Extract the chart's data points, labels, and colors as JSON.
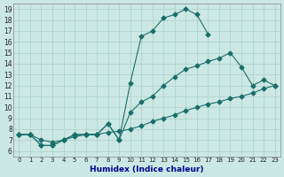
{
  "xlabel": "Humidex (Indice chaleur)",
  "bg_color": "#cce8e4",
  "grid_color": "#aacfcc",
  "line_color": "#1a6e6a",
  "xlim": [
    -0.5,
    23.5
  ],
  "ylim": [
    5.5,
    19.5
  ],
  "xticks": [
    0,
    1,
    2,
    3,
    4,
    5,
    6,
    7,
    8,
    9,
    10,
    11,
    12,
    13,
    14,
    15,
    16,
    17,
    18,
    19,
    20,
    21,
    22,
    23
  ],
  "yticks": [
    6,
    7,
    8,
    9,
    10,
    11,
    12,
    13,
    14,
    15,
    16,
    17,
    18,
    19
  ],
  "line1_x": [
    0,
    1,
    2,
    3,
    4,
    5,
    6,
    7,
    8,
    9,
    10,
    11,
    12,
    13,
    14,
    15,
    16,
    17
  ],
  "line1_y": [
    7.5,
    7.5,
    6.5,
    6.5,
    7.0,
    7.5,
    7.5,
    7.5,
    8.5,
    7.0,
    12.2,
    16.5,
    17.0,
    18.2,
    18.5,
    19.0,
    18.5,
    16.7
  ],
  "line2_x": [
    0,
    1,
    2,
    3,
    4,
    5,
    6,
    7,
    8,
    9,
    10,
    11,
    12,
    13,
    14,
    15,
    16,
    17,
    18,
    19,
    20,
    21,
    22,
    23
  ],
  "line2_y": [
    7.5,
    7.5,
    6.5,
    6.5,
    7.0,
    7.5,
    7.5,
    7.5,
    8.5,
    7.0,
    9.5,
    10.5,
    11.0,
    12.0,
    12.8,
    13.5,
    13.8,
    14.2,
    14.5,
    15.0,
    13.7,
    12.0,
    12.5,
    12.0
  ],
  "line3_x": [
    0,
    1,
    2,
    3,
    4,
    5,
    6,
    7,
    8,
    9,
    10,
    11,
    12,
    13,
    14,
    15,
    16,
    17,
    18,
    19,
    20,
    21,
    22,
    23
  ],
  "line3_y": [
    7.5,
    7.5,
    7.0,
    6.8,
    7.0,
    7.3,
    7.5,
    7.5,
    7.7,
    7.8,
    8.0,
    8.3,
    8.7,
    9.0,
    9.3,
    9.7,
    10.0,
    10.3,
    10.5,
    10.8,
    11.0,
    11.3,
    11.7,
    12.0
  ]
}
